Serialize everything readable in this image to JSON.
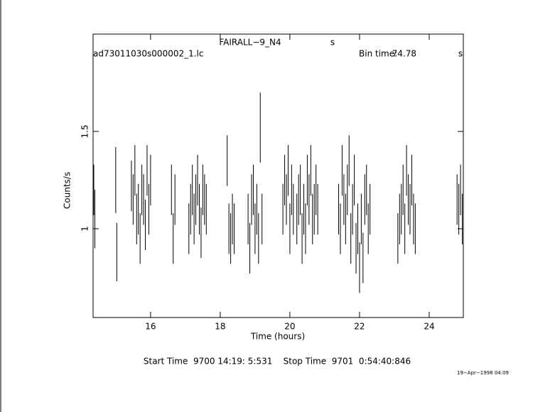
{
  "chart_data": {
    "type": "errorbar",
    "title": "FAIRALL−9_N4",
    "title_suffix": "s",
    "file_label": "ad73011030s000002_1.lc",
    "bin_label": "Bin time:",
    "bin_value": "74.78",
    "bin_unit": "s",
    "x_label": "Time (hours)",
    "y_label": "Counts/s",
    "footer": "Start Time  9700 14:19: 5:531    Stop Time  9701  0:54:40:846",
    "timestamp": "19−Apr−1998 04:09",
    "xlim": [
      14.35,
      24.98
    ],
    "ylim": [
      0.544,
      2.0
    ],
    "xticks": [
      16,
      18,
      20,
      22,
      24
    ],
    "yticks": [
      1,
      1.5
    ],
    "color": "#000000",
    "x": [
      14.37,
      14.4,
      15.0,
      15.03,
      15.45,
      15.5,
      15.55,
      15.6,
      15.65,
      15.7,
      15.75,
      15.8,
      15.85,
      15.9,
      15.95,
      16.0,
      16.6,
      16.65,
      16.7,
      17.1,
      17.15,
      17.2,
      17.25,
      17.3,
      17.35,
      17.4,
      17.45,
      17.5,
      17.55,
      17.6,
      18.2,
      18.25,
      18.3,
      18.35,
      18.4,
      18.8,
      18.85,
      18.9,
      18.95,
      19.0,
      19.05,
      19.1,
      19.15,
      19.2,
      19.8,
      19.85,
      19.9,
      19.95,
      20.0,
      20.05,
      20.1,
      20.2,
      20.25,
      20.3,
      20.35,
      20.4,
      20.45,
      20.5,
      20.55,
      20.6,
      20.65,
      20.7,
      20.75,
      20.8,
      21.4,
      21.45,
      21.5,
      21.55,
      21.6,
      21.65,
      21.7,
      21.75,
      21.8,
      21.85,
      21.9,
      21.95,
      22.0,
      22.05,
      22.1,
      22.15,
      22.2,
      22.25,
      22.3,
      23.1,
      23.15,
      23.2,
      23.25,
      23.3,
      23.35,
      23.4,
      23.45,
      23.5,
      23.55,
      23.6,
      24.8,
      24.85,
      24.9,
      24.95
    ],
    "series": [
      {
        "name": "Counts/s",
        "values": [
          1.2,
          1.05,
          1.25,
          0.88,
          1.22,
          1.15,
          1.3,
          1.05,
          1.1,
          0.95,
          1.2,
          1.15,
          1.02,
          1.3,
          1.1,
          1.25,
          1.2,
          0.95,
          1.15,
          1.0,
          1.1,
          1.2,
          1.05,
          1.15,
          1.25,
          1.1,
          0.98,
          1.2,
          1.15,
          1.1,
          1.35,
          1.0,
          0.95,
          1.05,
          1.0,
          1.05,
          0.9,
          1.15,
          1.2,
          1.0,
          1.1,
          0.95,
          1.52,
          1.05,
          1.1,
          1.25,
          1.15,
          1.3,
          1.0,
          1.2,
          1.1,
          1.05,
          1.15,
          1.2,
          0.95,
          1.1,
          1.0,
          1.25,
          1.15,
          1.3,
          1.05,
          1.1,
          1.2,
          1.1,
          1.1,
          1.0,
          1.3,
          1.15,
          1.05,
          1.2,
          1.35,
          0.95,
          1.1,
          1.25,
          0.9,
          1.0,
          0.8,
          1.05,
          0.85,
          1.15,
          1.2,
          1.0,
          1.1,
          0.95,
          1.05,
          1.1,
          1.2,
          1.0,
          1.3,
          1.15,
          1.1,
          1.25,
          1.05,
          1.0,
          1.15,
          1.1,
          1.2,
          1.05
        ],
        "errors": [
          0.13,
          0.15,
          0.17,
          0.15,
          0.13,
          0.13,
          0.13,
          0.13,
          0.13,
          0.13,
          0.13,
          0.13,
          0.13,
          0.13,
          0.13,
          0.13,
          0.13,
          0.13,
          0.13,
          0.13,
          0.13,
          0.13,
          0.13,
          0.13,
          0.13,
          0.13,
          0.13,
          0.13,
          0.13,
          0.13,
          0.13,
          0.13,
          0.13,
          0.13,
          0.13,
          0.13,
          0.13,
          0.13,
          0.13,
          0.13,
          0.13,
          0.13,
          0.18,
          0.13,
          0.13,
          0.13,
          0.13,
          0.13,
          0.13,
          0.13,
          0.13,
          0.13,
          0.13,
          0.13,
          0.13,
          0.13,
          0.13,
          0.13,
          0.13,
          0.13,
          0.13,
          0.13,
          0.13,
          0.13,
          0.13,
          0.13,
          0.13,
          0.13,
          0.13,
          0.13,
          0.13,
          0.13,
          0.13,
          0.13,
          0.13,
          0.13,
          0.13,
          0.13,
          0.13,
          0.13,
          0.13,
          0.13,
          0.13,
          0.13,
          0.13,
          0.13,
          0.13,
          0.13,
          0.13,
          0.13,
          0.13,
          0.13,
          0.13,
          0.13,
          0.13,
          0.13,
          0.13,
          0.13
        ]
      }
    ]
  }
}
